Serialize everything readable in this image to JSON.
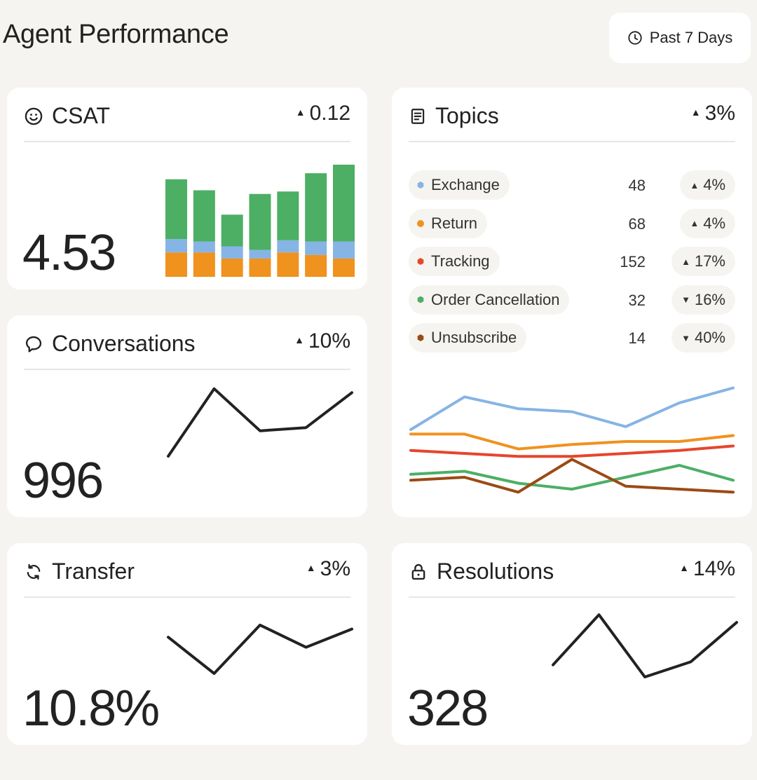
{
  "header": {
    "title": "Agent Performance",
    "range_label": "Past 7 Days",
    "range_icon": "clock-icon"
  },
  "colors": {
    "green": "#4caf64",
    "blue": "#86b4e4",
    "orange": "#f0921e",
    "red": "#e5462c",
    "brown": "#9b4a14",
    "line": "#222222"
  },
  "csat": {
    "title": "CSAT",
    "icon": "smiley-icon",
    "delta_dir": "up",
    "delta": "0.12",
    "value": "4.53",
    "chart_data": {
      "type": "bar",
      "stacked": true,
      "categories": [
        "",
        "",
        "",
        "",
        "",
        "",
        ""
      ],
      "series": [
        {
          "color": "#f0921e",
          "values": [
            1.0,
            1.0,
            0.75,
            0.75,
            1.0,
            0.9,
            0.75
          ]
        },
        {
          "color": "#86b4e4",
          "values": [
            0.55,
            0.45,
            0.5,
            0.35,
            0.5,
            0.55,
            0.7
          ]
        },
        {
          "color": "#4caf64",
          "values": [
            2.45,
            2.1,
            1.3,
            2.3,
            2.0,
            2.8,
            3.2
          ]
        }
      ],
      "ylim": [
        0,
        4.6
      ]
    }
  },
  "conversations": {
    "title": "Conversations",
    "icon": "chat-bubble-icon",
    "delta_dir": "up",
    "delta": "10%",
    "value": "996",
    "chart_data": {
      "type": "line",
      "x": [
        0,
        1,
        2,
        3,
        4
      ],
      "values": [
        0,
        85,
        32,
        36,
        80
      ],
      "ylim": [
        0,
        90
      ]
    }
  },
  "transfer": {
    "title": "Transfer",
    "icon": "refresh-icon",
    "delta_dir": "up",
    "delta": "3%",
    "value": "10.8%",
    "chart_data": {
      "type": "line",
      "x": [
        0,
        1,
        2,
        3,
        4
      ],
      "values": [
        36,
        0,
        48,
        26,
        44
      ],
      "ylim": [
        0,
        50
      ]
    }
  },
  "resolutions": {
    "title": "Resolutions",
    "icon": "lock-icon",
    "delta_dir": "up",
    "delta": "14%",
    "value": "328",
    "chart_data": {
      "type": "line",
      "x": [
        0,
        1,
        2,
        3,
        4
      ],
      "values": [
        16,
        82,
        0,
        20,
        72
      ],
      "ylim": [
        0,
        85
      ]
    }
  },
  "topics": {
    "title": "Topics",
    "icon": "document-icon",
    "delta_dir": "up",
    "delta": "3%",
    "items": [
      {
        "name": "Exchange",
        "count": "48",
        "dir": "up",
        "delta": "4%",
        "color": "#86b4e4",
        "shape": "hex"
      },
      {
        "name": "Return",
        "count": "68",
        "dir": "up",
        "delta": "4%",
        "color": "#f0921e",
        "shape": "circle"
      },
      {
        "name": "Tracking",
        "count": "152",
        "dir": "up",
        "delta": "17%",
        "color": "#e5462c",
        "shape": "hex"
      },
      {
        "name": "Order Cancellation",
        "count": "32",
        "dir": "down",
        "delta": "16%",
        "color": "#4caf64",
        "shape": "hex"
      },
      {
        "name": "Unsubscribe",
        "count": "14",
        "dir": "down",
        "delta": "40%",
        "color": "#9b4a14",
        "shape": "hex"
      }
    ],
    "chart_data": {
      "type": "line",
      "x": [
        0,
        1,
        2,
        3,
        4,
        5,
        6
      ],
      "series": [
        {
          "color": "#86b4e4",
          "values": [
            78,
            100,
            92,
            90,
            80,
            96,
            106
          ]
        },
        {
          "color": "#f0921e",
          "values": [
            75,
            75,
            65,
            68,
            70,
            70,
            74
          ]
        },
        {
          "color": "#e5462c",
          "values": [
            64,
            62,
            60,
            60,
            62,
            64,
            67
          ]
        },
        {
          "color": "#4caf64",
          "values": [
            48,
            50,
            42,
            38,
            46,
            54,
            44
          ]
        },
        {
          "color": "#9b4a14",
          "values": [
            44,
            46,
            36,
            58,
            40,
            38,
            36
          ]
        }
      ],
      "ylim": [
        30,
        110
      ]
    }
  }
}
